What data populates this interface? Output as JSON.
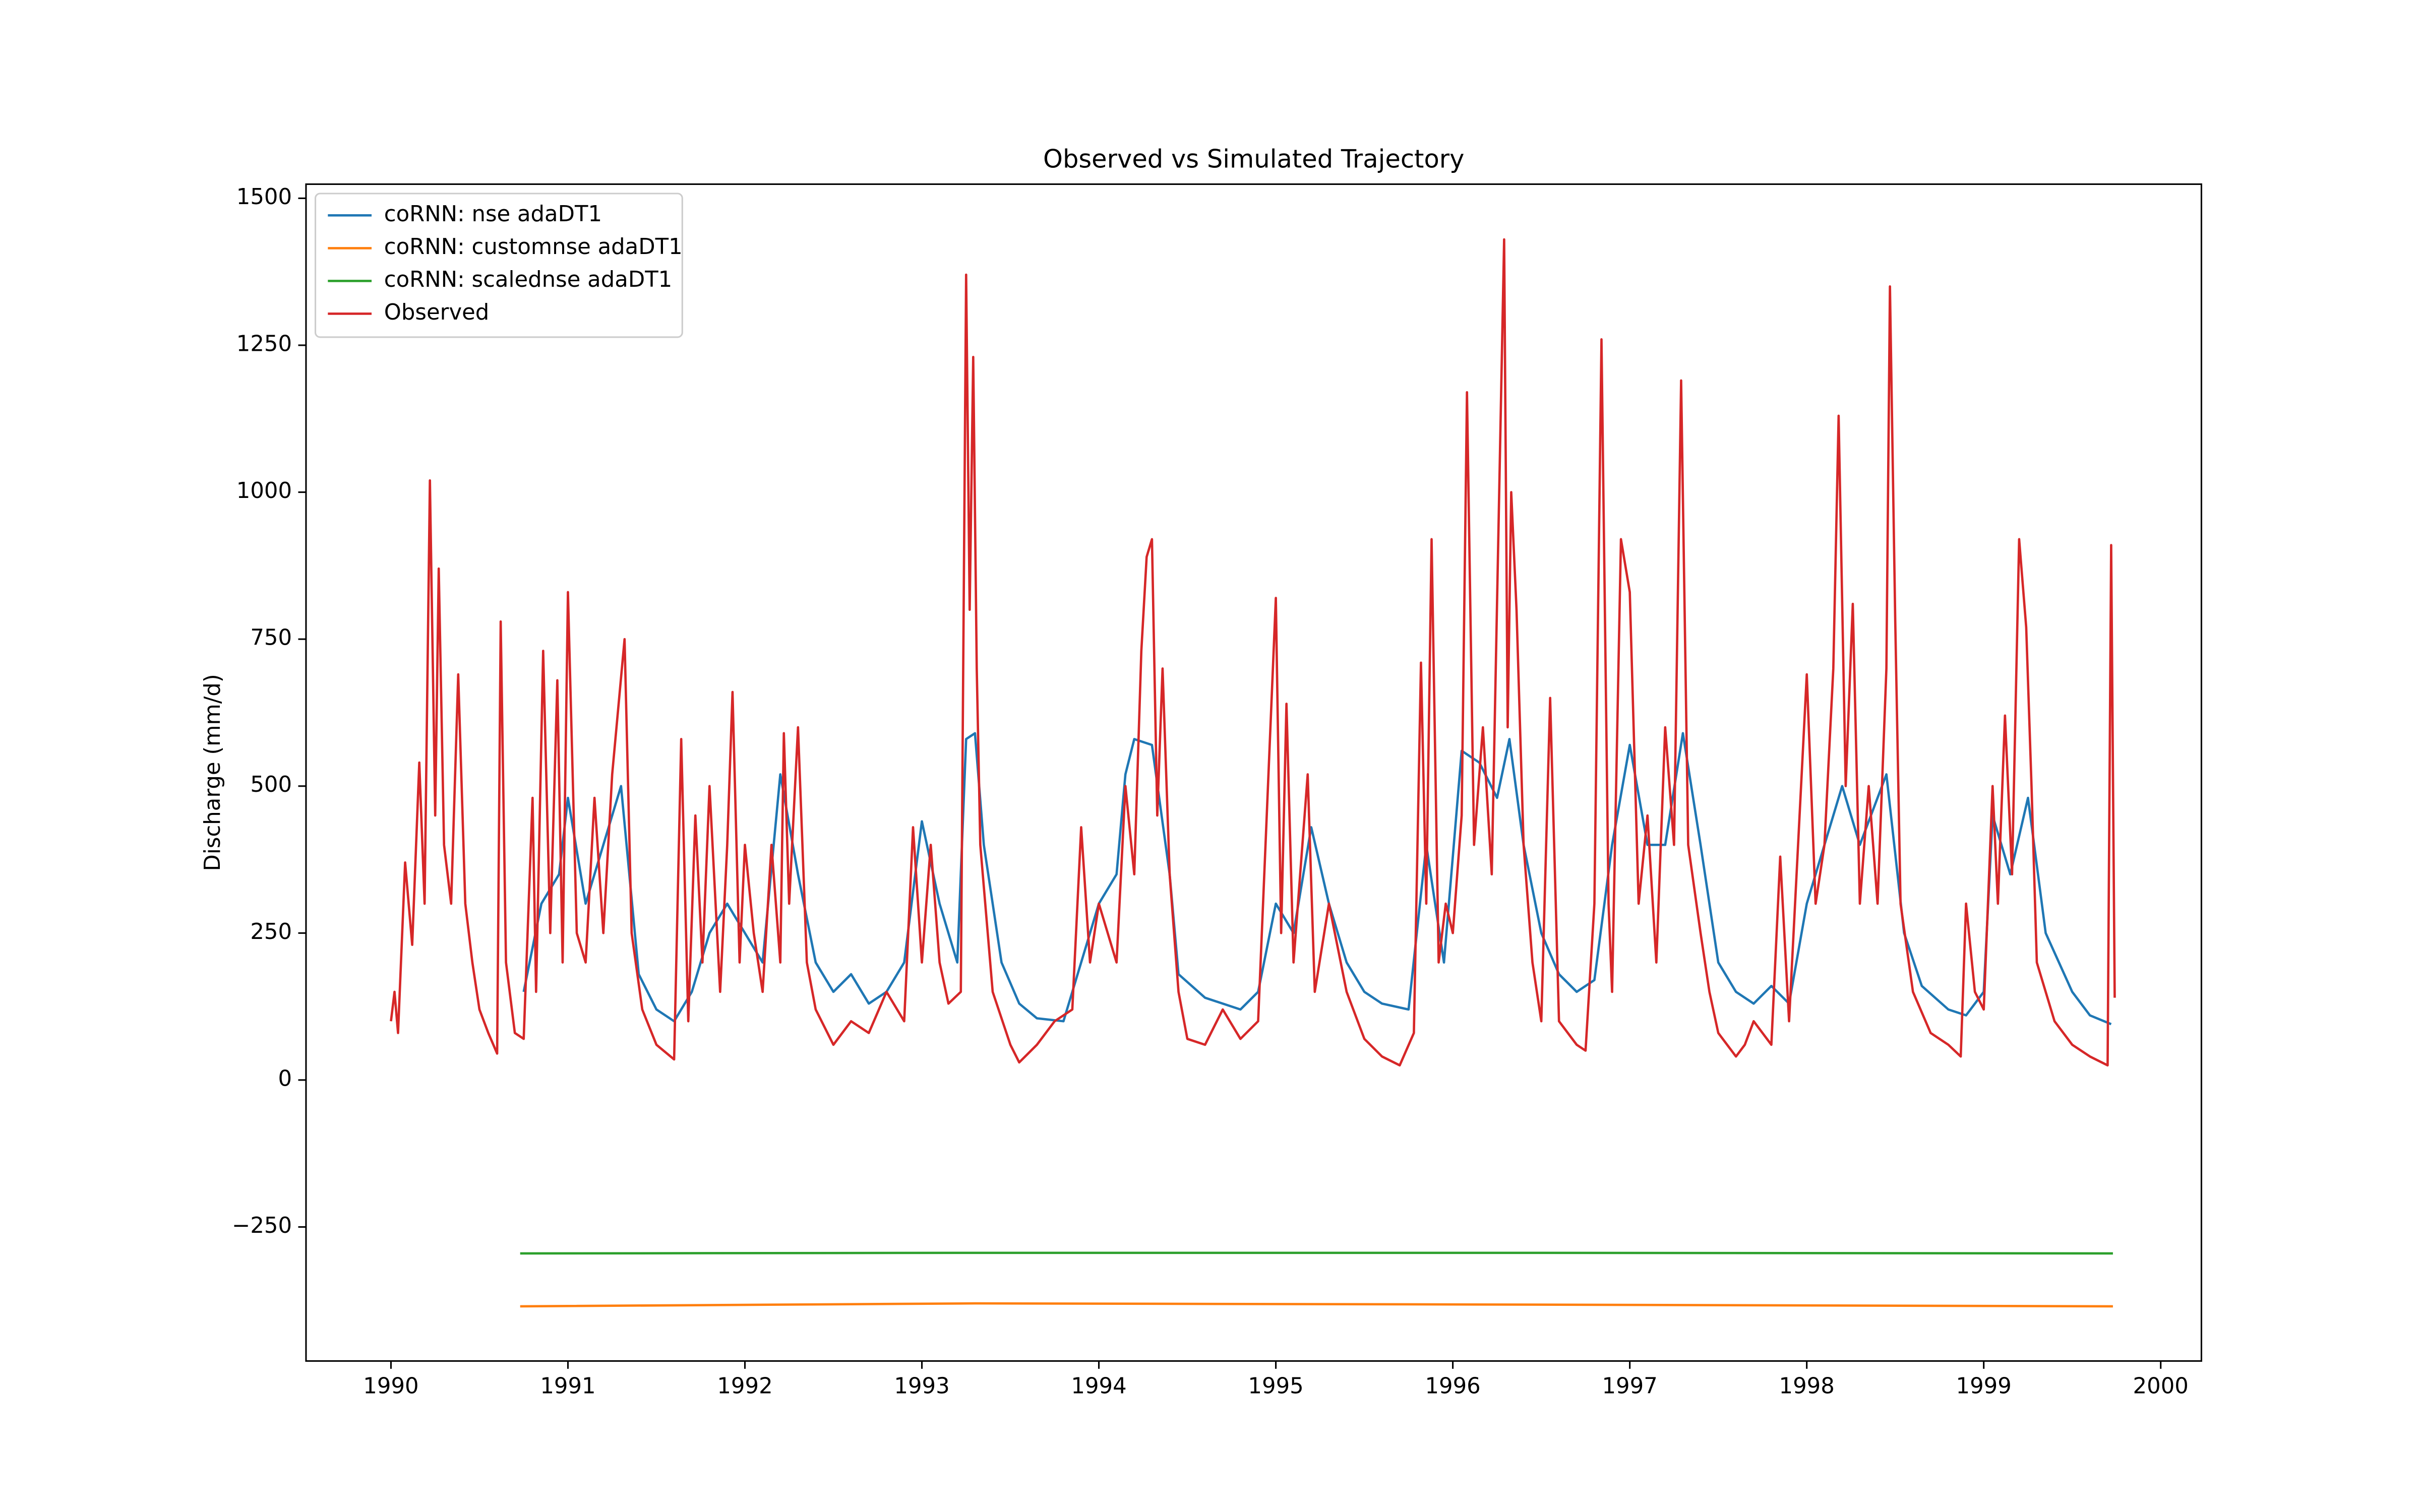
{
  "chart_data": {
    "type": "line",
    "title": "Observed vs Simulated Trajectory",
    "ylabel": "Discharge (mm/d)",
    "xlim": [
      1989.52,
      2000.23
    ],
    "ylim": [
      -478,
      1524
    ],
    "xticks": [
      1990,
      1991,
      1992,
      1993,
      1994,
      1995,
      1996,
      1997,
      1998,
      1999,
      2000
    ],
    "yticks": [
      {
        "value": -250,
        "label": "−250"
      },
      0,
      250,
      500,
      750,
      1000,
      1250,
      1500
    ],
    "legend": "upper left",
    "series": [
      {
        "name": "coRNN: nse adaDT1",
        "color": "#1f77b4",
        "x": [
          1990.75,
          1990.85,
          1990.95,
          1991.0,
          1991.1,
          1991.2,
          1991.3,
          1991.4,
          1991.5,
          1991.6,
          1991.7,
          1991.8,
          1991.9,
          1992.0,
          1992.1,
          1992.2,
          1992.3,
          1992.4,
          1992.5,
          1992.6,
          1992.7,
          1992.8,
          1992.9,
          1993.0,
          1993.1,
          1993.2,
          1993.25,
          1993.3,
          1993.35,
          1993.45,
          1993.55,
          1993.65,
          1993.8,
          1993.9,
          1994.0,
          1994.1,
          1994.15,
          1994.2,
          1994.3,
          1994.4,
          1994.45,
          1994.6,
          1994.8,
          1994.9,
          1995.0,
          1995.1,
          1995.2,
          1995.3,
          1995.4,
          1995.5,
          1995.6,
          1995.75,
          1995.85,
          1995.95,
          1996.05,
          1996.15,
          1996.25,
          1996.32,
          1996.4,
          1996.5,
          1996.6,
          1996.7,
          1996.8,
          1996.9,
          1997.0,
          1997.1,
          1997.2,
          1997.3,
          1997.4,
          1997.5,
          1997.6,
          1997.7,
          1997.8,
          1997.9,
          1998.0,
          1998.1,
          1998.2,
          1998.3,
          1998.45,
          1998.55,
          1998.65,
          1998.8,
          1998.9,
          1999.0,
          1999.05,
          1999.15,
          1999.25,
          1999.35,
          1999.5,
          1999.6,
          1999.72
        ],
        "values": [
          150,
          300,
          350,
          480,
          300,
          400,
          500,
          180,
          120,
          100,
          150,
          250,
          300,
          250,
          200,
          520,
          350,
          200,
          150,
          180,
          130,
          150,
          200,
          440,
          300,
          200,
          580,
          590,
          400,
          200,
          130,
          105,
          100,
          200,
          300,
          350,
          520,
          580,
          570,
          350,
          180,
          140,
          120,
          150,
          300,
          250,
          430,
          300,
          200,
          150,
          130,
          120,
          400,
          200,
          560,
          540,
          480,
          580,
          400,
          250,
          180,
          150,
          170,
          400,
          570,
          400,
          400,
          590,
          400,
          200,
          150,
          130,
          160,
          130,
          300,
          400,
          500,
          400,
          520,
          250,
          160,
          120,
          110,
          150,
          450,
          350,
          480,
          250,
          150,
          110,
          95
        ]
      },
      {
        "name": "coRNN: customnse adaDT1",
        "color": "#ff7f0e",
        "x": [
          1990.73,
          1993.3,
          1996.3,
          1999.73
        ],
        "values": [
          -385,
          -380,
          -382,
          -385
        ]
      },
      {
        "name": "coRNN: scalednse adaDT1",
        "color": "#2ca02c",
        "x": [
          1990.73,
          1993.3,
          1996.3,
          1999.73
        ],
        "values": [
          -295,
          -294,
          -294,
          -295
        ]
      },
      {
        "name": "Observed",
        "color": "#d62728",
        "x": [
          1990.0,
          1990.02,
          1990.04,
          1990.08,
          1990.12,
          1990.16,
          1990.19,
          1990.22,
          1990.25,
          1990.27,
          1990.3,
          1990.34,
          1990.38,
          1990.42,
          1990.46,
          1990.5,
          1990.55,
          1990.6,
          1990.62,
          1990.65,
          1990.7,
          1990.75,
          1990.8,
          1990.82,
          1990.86,
          1990.9,
          1990.94,
          1990.97,
          1991.0,
          1991.05,
          1991.1,
          1991.15,
          1991.2,
          1991.25,
          1991.32,
          1991.36,
          1991.42,
          1991.5,
          1991.6,
          1991.64,
          1991.68,
          1991.72,
          1991.76,
          1991.8,
          1991.86,
          1991.9,
          1991.93,
          1991.97,
          1992.0,
          1992.05,
          1992.1,
          1992.15,
          1992.2,
          1992.22,
          1992.25,
          1992.3,
          1992.35,
          1992.4,
          1992.5,
          1992.6,
          1992.7,
          1992.8,
          1992.9,
          1992.95,
          1993.0,
          1993.05,
          1993.1,
          1993.15,
          1993.22,
          1993.25,
          1993.27,
          1993.29,
          1993.31,
          1993.33,
          1993.4,
          1993.5,
          1993.55,
          1993.65,
          1993.75,
          1993.85,
          1993.9,
          1993.95,
          1994.0,
          1994.1,
          1994.15,
          1994.2,
          1994.24,
          1994.27,
          1994.3,
          1994.33,
          1994.36,
          1994.4,
          1994.45,
          1994.5,
          1994.6,
          1994.7,
          1994.8,
          1994.9,
          1995.0,
          1995.03,
          1995.06,
          1995.1,
          1995.18,
          1995.22,
          1995.3,
          1995.4,
          1995.5,
          1995.6,
          1995.7,
          1995.78,
          1995.82,
          1995.85,
          1995.88,
          1995.92,
          1995.96,
          1996.0,
          1996.05,
          1996.08,
          1996.12,
          1996.17,
          1996.22,
          1996.29,
          1996.31,
          1996.33,
          1996.36,
          1996.4,
          1996.45,
          1996.5,
          1996.55,
          1996.6,
          1996.7,
          1996.75,
          1996.8,
          1996.84,
          1996.88,
          1996.9,
          1996.95,
          1997.0,
          1997.05,
          1997.1,
          1997.15,
          1997.2,
          1997.25,
          1997.29,
          1997.33,
          1997.4,
          1997.45,
          1997.5,
          1997.6,
          1997.65,
          1997.7,
          1997.8,
          1997.85,
          1997.9,
          1998.0,
          1998.05,
          1998.1,
          1998.15,
          1998.18,
          1998.22,
          1998.26,
          1998.3,
          1998.35,
          1998.4,
          1998.45,
          1998.47,
          1998.5,
          1998.53,
          1998.6,
          1998.7,
          1998.8,
          1998.87,
          1998.9,
          1998.95,
          1999.0,
          1999.05,
          1999.08,
          1999.12,
          1999.16,
          1999.2,
          1999.24,
          1999.27,
          1999.3,
          1999.35,
          1999.4,
          1999.5,
          1999.6,
          1999.7,
          1999.72,
          1999.74
        ],
        "values": [
          100,
          150,
          80,
          370,
          230,
          540,
          300,
          1020,
          450,
          870,
          400,
          300,
          690,
          300,
          200,
          120,
          80,
          45,
          780,
          200,
          80,
          70,
          480,
          150,
          730,
          250,
          680,
          200,
          830,
          250,
          200,
          480,
          250,
          520,
          750,
          250,
          120,
          60,
          35,
          580,
          100,
          450,
          200,
          500,
          150,
          400,
          660,
          200,
          400,
          250,
          150,
          400,
          200,
          590,
          300,
          600,
          200,
          120,
          60,
          100,
          80,
          150,
          100,
          430,
          200,
          400,
          200,
          130,
          150,
          1370,
          800,
          1230,
          700,
          400,
          150,
          60,
          30,
          60,
          100,
          120,
          430,
          200,
          300,
          200,
          500,
          350,
          730,
          890,
          920,
          450,
          700,
          350,
          150,
          70,
          60,
          120,
          70,
          100,
          820,
          250,
          640,
          200,
          520,
          150,
          300,
          150,
          70,
          40,
          25,
          80,
          710,
          300,
          920,
          200,
          300,
          250,
          450,
          1170,
          400,
          600,
          350,
          1430,
          600,
          1000,
          800,
          400,
          200,
          100,
          650,
          100,
          60,
          50,
          300,
          1260,
          300,
          150,
          920,
          830,
          300,
          450,
          200,
          600,
          400,
          1190,
          400,
          250,
          150,
          80,
          40,
          60,
          100,
          60,
          380,
          100,
          690,
          300,
          400,
          700,
          1130,
          500,
          810,
          300,
          500,
          300,
          700,
          1350,
          780,
          300,
          150,
          80,
          60,
          40,
          300,
          150,
          120,
          500,
          300,
          620,
          350,
          920,
          770,
          500,
          200,
          150,
          100,
          60,
          40,
          25,
          910,
          140
        ]
      }
    ]
  }
}
